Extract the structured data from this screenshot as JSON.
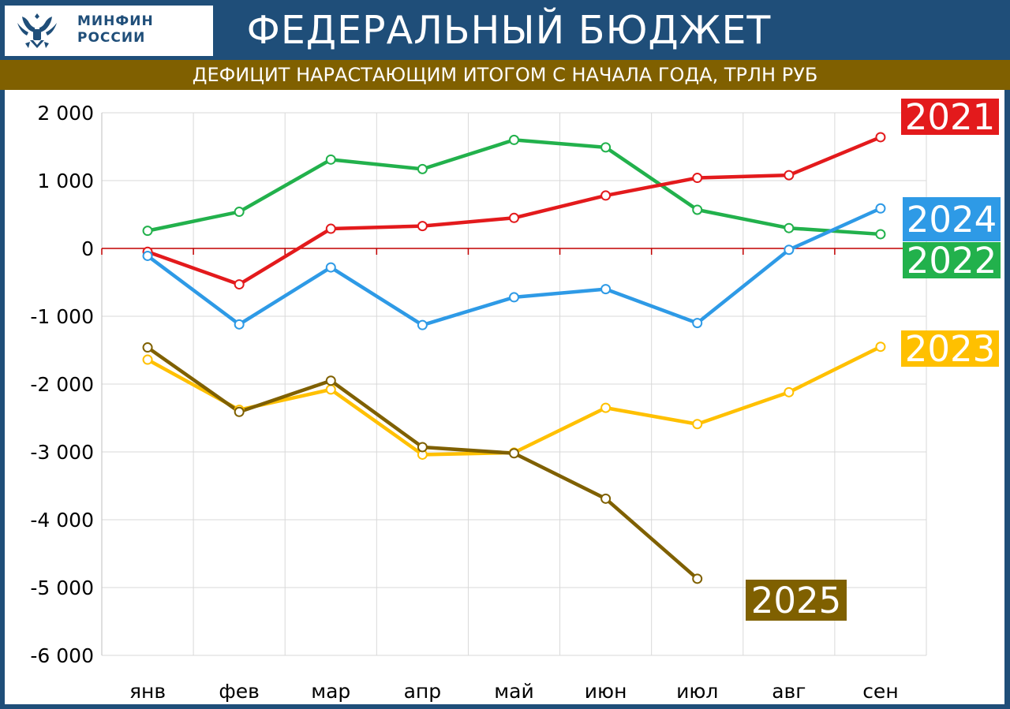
{
  "header": {
    "logo_line1": "МИНФИН",
    "logo_line2": "РОССИИ",
    "title": "ФЕДЕРАЛЬНЫЙ БЮДЖЕТ",
    "subtitle": "ДЕФИЦИТ НАРАСТАЮЩИМ ИТОГОМ С НАЧАЛА ГОДА, ТРЛН РУБ"
  },
  "colors": {
    "header_bg": "#1f4e79",
    "subtitle_bg": "#806000",
    "zero_line": "#c00000"
  },
  "chart_data": {
    "type": "line",
    "title": "ДЕФИЦИТ НАРАСТАЮЩИМ ИТОГОМ С НАЧАЛА ГОДА, ТРЛН РУБ",
    "categories": [
      "янв",
      "фев",
      "мар",
      "апр",
      "май",
      "июн",
      "июл",
      "авг",
      "сен"
    ],
    "ylim": [
      -6000,
      2000
    ],
    "yticks": [
      2000,
      1000,
      0,
      -1000,
      -2000,
      -3000,
      -4000,
      -5000,
      -6000
    ],
    "ytick_labels": [
      "2 000",
      "1 000",
      "0",
      "-1 000",
      "-2 000",
      "-3 000",
      "-4 000",
      "-5 000",
      "-6 000"
    ],
    "grid": true,
    "legend": "series labels at right end of lines",
    "series": [
      {
        "name": "2022",
        "color": "#22b14c",
        "label_bg": "#22b14c",
        "label_color": "#ffffff",
        "values": [
          260,
          540,
          1310,
          1170,
          1600,
          1490,
          570,
          300,
          210
        ]
      },
      {
        "name": "2021",
        "color": "#e31a1c",
        "label_bg": "#e31a1c",
        "label_color": "#ffffff",
        "values": [
          -50,
          -530,
          290,
          330,
          450,
          780,
          1040,
          1080,
          1640
        ]
      },
      {
        "name": "2024",
        "color": "#2e9ae6",
        "label_bg": "#2e9ae6",
        "label_color": "#ffffff",
        "values": [
          -110,
          -1120,
          -280,
          -1130,
          -720,
          -600,
          -1100,
          -20,
          590
        ]
      },
      {
        "name": "2023",
        "color": "#ffc000",
        "label_bg": "#ffc000",
        "label_color": "#ffffff",
        "values": [
          -1640,
          -2380,
          -2080,
          -3040,
          -3010,
          -2350,
          -2590,
          -2120,
          -1450
        ]
      },
      {
        "name": "2025",
        "color": "#7f6000",
        "label_bg": "#7f6000",
        "label_color": "#ffffff",
        "values": [
          -1460,
          -2410,
          -1950,
          -2930,
          -3020,
          -3690,
          -4870,
          null,
          null
        ]
      }
    ]
  }
}
